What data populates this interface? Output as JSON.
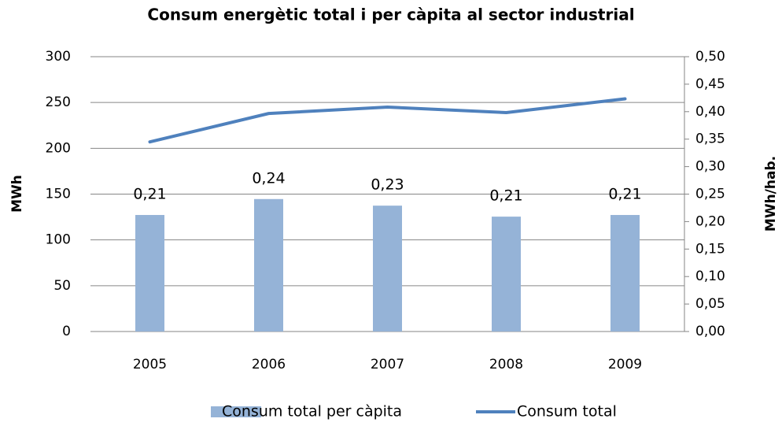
{
  "chart_data": {
    "type": "combo",
    "title": "Consum energètic total i per càpita al sector industrial",
    "categories": [
      "2005",
      "2006",
      "2007",
      "2008",
      "2009"
    ],
    "y_label": "MWh",
    "y2_label": "MWh/hab.",
    "ylim": [
      0,
      300
    ],
    "yticks": [
      0,
      50,
      100,
      150,
      200,
      250,
      300
    ],
    "y2lim": [
      0,
      0.5
    ],
    "y2ticks": [
      {
        "value": 0,
        "label": "0,00"
      },
      {
        "value": 0.05,
        "label": "0,05"
      },
      {
        "value": 0.1,
        "label": "0,10"
      },
      {
        "value": 0.15,
        "label": "0,15"
      },
      {
        "value": 0.2,
        "label": "0,20"
      },
      {
        "value": 0.25,
        "label": "0,25"
      },
      {
        "value": 0.3,
        "label": "0,30"
      },
      {
        "value": 0.35,
        "label": "0,35"
      },
      {
        "value": 0.4,
        "label": "0,40"
      },
      {
        "value": 0.45,
        "label": "0,45"
      },
      {
        "value": 0.5,
        "label": "0,50"
      }
    ],
    "grid": true,
    "legend": "bottom",
    "series": [
      {
        "name": "Consum total per càpita",
        "type": "bar",
        "axis": "y2",
        "color": "#95b3d7",
        "values": [
          0.212,
          0.241,
          0.229,
          0.209,
          0.212
        ],
        "value_labels": [
          "0,21",
          "0,24",
          "0,23",
          "0,21",
          "0,21"
        ]
      },
      {
        "name": "Consum total",
        "type": "line",
        "color": "#4f81bd",
        "values": [
          207,
          238,
          245,
          239,
          254
        ]
      }
    ]
  }
}
